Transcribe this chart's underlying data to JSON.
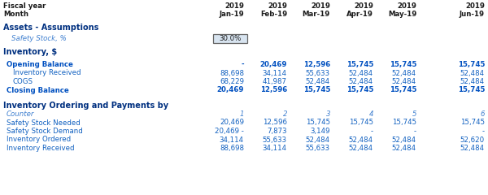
{
  "col_year": [
    "2019",
    "2019",
    "2019",
    "2019",
    "2019",
    "2019"
  ],
  "col_month": [
    "Jan-19",
    "Feb-19",
    "Mar-19",
    "Apr-19",
    "May-19",
    "Jun-19"
  ],
  "section1_title": "Assets - Assumptions",
  "safety_stock_label": "Safety Stock, %",
  "safety_stock_value": "30.0%",
  "section2_title": "Inventory, $",
  "inventory_rows": [
    {
      "label": "Opening Balance",
      "indent": false,
      "bold": true,
      "values": [
        "-",
        "20,469",
        "12,596",
        "15,745",
        "15,745",
        "15,745"
      ]
    },
    {
      "label": "Inventory Received",
      "indent": true,
      "bold": false,
      "values": [
        "88,698",
        "34,114",
        "55,633",
        "52,484",
        "52,484",
        "52,484"
      ]
    },
    {
      "label": "COGS",
      "indent": true,
      "bold": false,
      "values": [
        "68,229",
        "41,987",
        "52,484",
        "52,484",
        "52,484",
        "52,484"
      ]
    },
    {
      "label": "Closing Balance",
      "indent": false,
      "bold": true,
      "values": [
        "20,469",
        "12,596",
        "15,745",
        "15,745",
        "15,745",
        "15,745"
      ]
    }
  ],
  "section3_title": "Inventory Ordering and Payments by",
  "ordering_rows": [
    {
      "label": "Counter",
      "values": [
        "1",
        "2",
        "3",
        "4",
        "5",
        "6"
      ],
      "italic": true
    },
    {
      "label": "Safety Stock Needed",
      "values": [
        "20,469",
        "12,596",
        "15,745",
        "15,745",
        "15,745",
        "15,745"
      ],
      "italic": false
    },
    {
      "label": "Safety Stock Demand",
      "values": [
        "20,469 -",
        "7,873",
        "3,149",
        "-",
        "-",
        "-"
      ],
      "italic": false
    },
    {
      "label": "Inventory Ordered",
      "values": [
        "34,114",
        "55,633",
        "52,484",
        "52,484",
        "52,484",
        "52,620"
      ],
      "italic": false
    },
    {
      "label": "Inventory Received",
      "values": [
        "88,698",
        "34,114",
        "55,633",
        "52,484",
        "52,484",
        "52,484"
      ],
      "italic": false
    }
  ],
  "c_black": "#1a1a1a",
  "c_blue_dark": "#003080",
  "c_blue_sect": "#0050C0",
  "c_blue_data": "#1060C0",
  "c_blue_light": "#4080D0",
  "c_box_bg": "#D8E4F0",
  "c_box_edge": "#666666"
}
